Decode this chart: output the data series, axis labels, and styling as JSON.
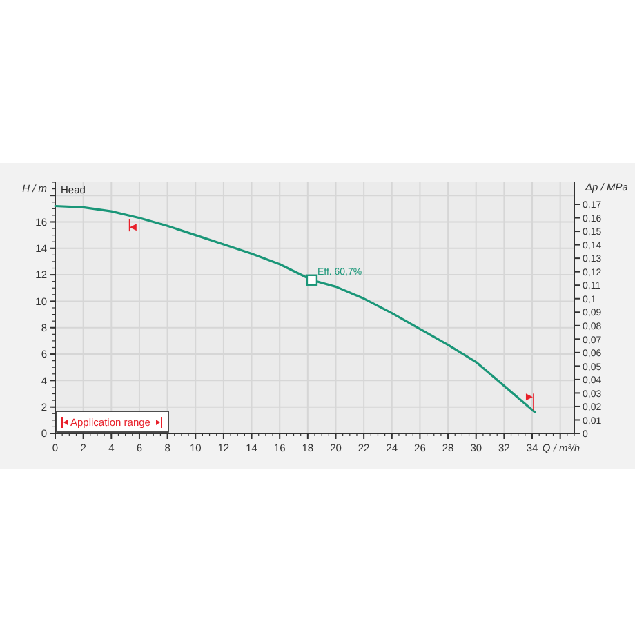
{
  "chart_data": {
    "type": "line",
    "xlabel": "Q / m³/h",
    "ylabel": "H / m",
    "y2label": "Δp / MPa",
    "x": [
      0,
      2,
      4,
      6,
      8,
      10,
      12,
      14,
      16,
      18.3,
      20,
      22,
      24,
      26,
      28,
      30,
      32,
      34.2
    ],
    "series": [
      {
        "color": "#1a9678",
        "values": [
          17.2,
          17.1,
          16.8,
          16.3,
          15.7,
          15.0,
          14.3,
          13.6,
          12.8,
          11.6,
          11.1,
          10.2,
          9.1,
          7.9,
          6.7,
          5.4,
          3.6,
          1.6
        ]
      },
      {
        "type": "scatter",
        "marker": "square",
        "color": "#1a9678",
        "x": [
          18.3
        ],
        "values": [
          11.6
        ]
      },
      {
        "type": "scatter",
        "marker": "triangle",
        "name": "Application range",
        "color": "#e8202a",
        "x": [
          5.55,
          33.8
        ],
        "values": [
          15.6,
          2.75
        ]
      }
    ],
    "xlim": [
      0,
      37
    ],
    "xticks": [
      0,
      2,
      4,
      6,
      8,
      10,
      12,
      14,
      16,
      18,
      20,
      22,
      24,
      26,
      28,
      30,
      32,
      34,
      {
        "value": 36,
        "label": null
      }
    ],
    "ylim": [
      0,
      19
    ],
    "yticks": [
      0,
      2,
      4,
      6,
      8,
      10,
      12,
      14,
      16,
      {
        "value": 18,
        "label": null
      }
    ],
    "y2lim": [
      0,
      0.1864
    ],
    "y2ticks": [
      0,
      {
        "value": 0.01,
        "label": "0,01"
      },
      {
        "value": 0.02,
        "label": "0,02"
      },
      {
        "value": 0.03,
        "label": "0,03"
      },
      {
        "value": 0.04,
        "label": "0,04"
      },
      {
        "value": 0.05,
        "label": "0,05"
      },
      {
        "value": 0.06,
        "label": "0,06"
      },
      {
        "value": 0.07,
        "label": "0,07"
      },
      {
        "value": 0.08,
        "label": "0,08"
      },
      {
        "value": 0.09,
        "label": "0,09"
      },
      {
        "value": 0.1,
        "label": "0,1"
      },
      {
        "value": 0.11,
        "label": "0,11"
      },
      {
        "value": 0.12,
        "label": "0,12"
      },
      {
        "value": 0.13,
        "label": "0,13"
      },
      {
        "value": 0.14,
        "label": "0,14"
      },
      {
        "value": 0.15,
        "label": "0,15"
      },
      {
        "value": 0.16,
        "label": "0,16"
      },
      {
        "value": 0.17,
        "label": "0,17"
      }
    ],
    "grid": true,
    "legend": "bottom left",
    "annotations": [
      "Head",
      {
        "text": "Eff. 60,7%",
        "x": 18.3,
        "y": 11.6
      }
    ]
  }
}
